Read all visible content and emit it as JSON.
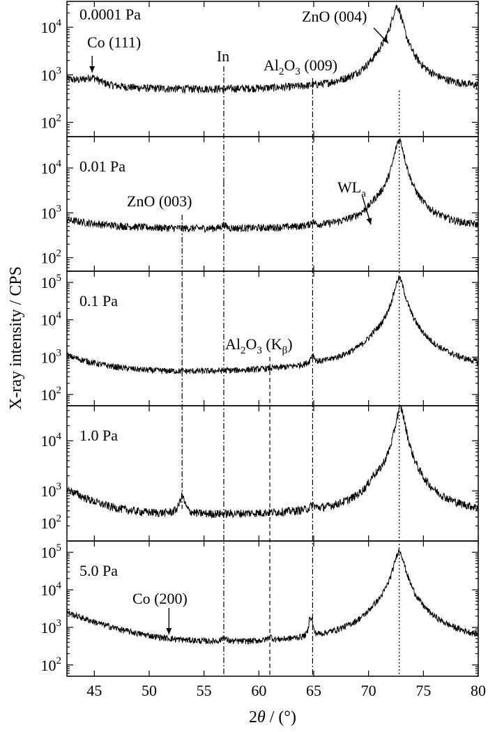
{
  "chart_data": {
    "type": "line",
    "xlabel": "2θ / (°)",
    "xlabel_parts": [
      "2",
      "θ",
      " / (°)"
    ],
    "ylabel": "X-ray intensity / CPS",
    "xlim": [
      42.5,
      80
    ],
    "xticks": [
      45,
      50,
      55,
      60,
      65,
      70,
      75,
      80
    ],
    "yscale": "log",
    "grid": false,
    "legend": "none",
    "reference_lines": [
      {
        "label": "In",
        "x": 56.8,
        "style": "dash-dot"
      },
      {
        "label": "ZnO (003)",
        "x": 53.0,
        "style": "dash-dot"
      },
      {
        "label": "Al2O3 (009)",
        "x": 64.9,
        "style": "dash-dot"
      },
      {
        "label": "Al2O3 (Kβ)",
        "x": 61.0,
        "style": "dashed"
      },
      {
        "label": "ZnO (004)",
        "x": 72.8,
        "style": "dotted"
      }
    ],
    "panels": [
      {
        "label": "0.0001 Pa",
        "ylim": [
          50,
          35000
        ],
        "yticks": [
          {
            "v": 100,
            "b": "10",
            "e": "2"
          },
          {
            "v": 1000,
            "b": "10",
            "e": "3"
          },
          {
            "v": 10000,
            "b": "10",
            "e": "4"
          }
        ],
        "curve": {
          "start_x": 42.5,
          "start_level": 800,
          "end_level": 480,
          "decay": 3.0,
          "peaks": [
            {
              "x": 44.8,
              "height": 250,
              "width": 0.8
            },
            {
              "x": 72.6,
              "height": 26000,
              "width": 0.45
            },
            {
              "x": 71.6,
              "height": 1500,
              "width": 1.2
            }
          ]
        }
      },
      {
        "label": "0.01 Pa",
        "ylim": [
          50,
          50000
        ],
        "yticks": [
          {
            "v": 100,
            "b": "10",
            "e": "2"
          },
          {
            "v": 1000,
            "b": "10",
            "e": "3"
          },
          {
            "v": 10000,
            "b": "10",
            "e": "4"
          }
        ],
        "curve": {
          "start_x": 42.5,
          "start_level": 700,
          "end_level": 420,
          "decay": 4.0,
          "peaks": [
            {
              "x": 72.8,
              "height": 42000,
              "width": 0.4
            },
            {
              "x": 70.6,
              "height": 300,
              "width": 0.5
            },
            {
              "x": 71.3,
              "height": 250,
              "width": 0.6
            },
            {
              "x": 64.9,
              "height": 120,
              "width": 0.2
            },
            {
              "x": 56.8,
              "height": 100,
              "width": 0.2
            }
          ]
        }
      },
      {
        "label": "0.1 Pa",
        "ylim": [
          50,
          200000
        ],
        "yticks": [
          {
            "v": 100,
            "b": "10",
            "e": "2"
          },
          {
            "v": 1000,
            "b": "10",
            "e": "3"
          },
          {
            "v": 10000,
            "b": "10",
            "e": "4"
          },
          {
            "v": 100000,
            "b": "10",
            "e": "5"
          }
        ],
        "curve": {
          "start_x": 42.5,
          "start_level": 1100,
          "end_level": 350,
          "decay": 3.0,
          "peaks": [
            {
              "x": 72.8,
              "height": 130000,
              "width": 0.4
            },
            {
              "x": 70.5,
              "height": 600,
              "width": 0.45
            },
            {
              "x": 71.5,
              "height": 500,
              "width": 0.7
            },
            {
              "x": 64.9,
              "height": 500,
              "width": 0.18
            }
          ]
        }
      },
      {
        "label": "1.0 Pa",
        "ylim": [
          100,
          50000
        ],
        "yticks": [
          {
            "v": 1000,
            "b": "10",
            "e": "3"
          },
          {
            "v": 10000,
            "b": "10",
            "e": "4"
          }
        ],
        "ytick_extra": [
          {
            "v": 200,
            "b": "10",
            "e": "2",
            "tick_only": true
          }
        ],
        "curve": {
          "start_x": 42.5,
          "start_level": 1100,
          "end_level": 320,
          "decay": 2.5,
          "peaks": [
            {
              "x": 72.9,
              "height": 45000,
              "width": 0.4
            },
            {
              "x": 53.0,
              "height": 450,
              "width": 0.25
            },
            {
              "x": 70.5,
              "height": 500,
              "width": 0.45
            },
            {
              "x": 71.5,
              "height": 400,
              "width": 0.7
            },
            {
              "x": 64.9,
              "height": 100,
              "width": 0.2
            }
          ]
        }
      },
      {
        "label": "5.0 Pa",
        "ylim": [
          50,
          200000
        ],
        "yticks": [
          {
            "v": 100,
            "b": "10",
            "e": "2"
          },
          {
            "v": 1000,
            "b": "10",
            "e": "3"
          },
          {
            "v": 10000,
            "b": "10",
            "e": "4"
          },
          {
            "v": 100000,
            "b": "10",
            "e": "5"
          }
        ],
        "curve": {
          "start_x": 42.5,
          "start_level": 2500,
          "end_level": 320,
          "decay": 3.5,
          "peaks": [
            {
              "x": 72.8,
              "height": 110000,
              "width": 0.4
            },
            {
              "x": 64.65,
              "height": 1500,
              "width": 0.08
            },
            {
              "x": 64.85,
              "height": 900,
              "width": 0.08
            },
            {
              "x": 70.5,
              "height": 500,
              "width": 0.45
            },
            {
              "x": 71.5,
              "height": 400,
              "width": 0.7
            },
            {
              "x": 56.8,
              "height": 120,
              "width": 0.2
            },
            {
              "x": 61.0,
              "height": 120,
              "width": 0.2
            }
          ]
        }
      }
    ],
    "annotations": [
      {
        "panel": 0,
        "text": "Co (111)"
      },
      {
        "panel": 0,
        "text": "In"
      },
      {
        "panel": 0,
        "text": "ZnO (004)"
      },
      {
        "panel": 0,
        "parts": [
          {
            "t": "Al"
          },
          {
            "t": "2",
            "sub": true
          },
          {
            "t": "O"
          },
          {
            "t": "3",
            "sub": true
          },
          {
            "t": " (009)"
          }
        ]
      },
      {
        "panel": 1,
        "text": "ZnO (003)"
      },
      {
        "panel": 1,
        "parts": [
          {
            "t": "WL"
          },
          {
            "t": "a",
            "sub": true
          }
        ]
      },
      {
        "panel": 2,
        "parts": [
          {
            "t": "Al"
          },
          {
            "t": "2",
            "sub": true
          },
          {
            "t": "O"
          },
          {
            "t": "3",
            "sub": true
          },
          {
            "t": " (K"
          },
          {
            "t": "β",
            "sub": true
          },
          {
            "t": ")"
          }
        ]
      },
      {
        "panel": 4,
        "text": "Co (200)"
      }
    ]
  }
}
